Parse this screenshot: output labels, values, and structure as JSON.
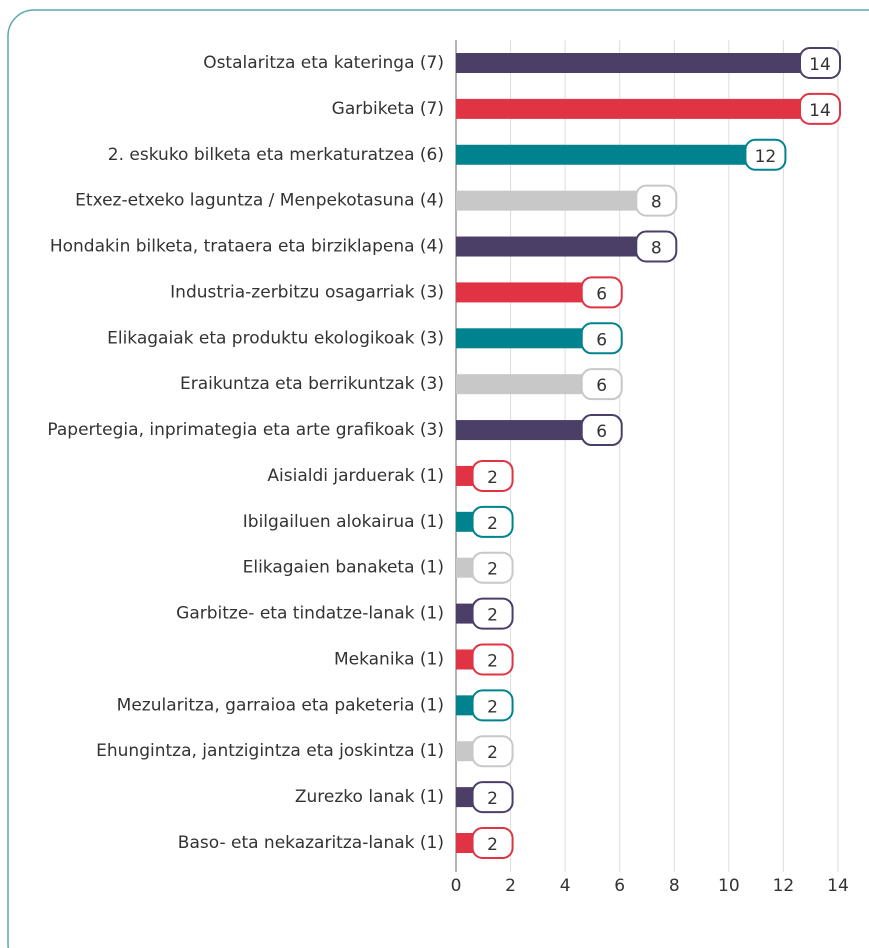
{
  "chart_data": {
    "type": "barh",
    "categories": [
      "Ostalaritza eta kateringa (7)",
      "Garbiketa (7)",
      "2. eskuko bilketa eta merkaturatzea (6)",
      "Etxez-etxeko laguntza / Menpekotasuna (4)",
      "Hondakin bilketa, trataera eta birziklapena (4)",
      "Industria-zerbitzu osagarriak (3)",
      "Elikagaiak eta produktu ekologikoak (3)",
      "Eraikuntza eta berrikuntzak (3)",
      "Papertegia, inprimategia eta arte grafikoak (3)",
      "Aisialdi jarduerak (1)",
      "Ibilgailuen alokairua (1)",
      "Elikagaien banaketa (1)",
      "Garbitze- eta tindatze-lanak (1)",
      "Mekanika (1)",
      "Mezularitza, garraioa eta paketeria (1)",
      "Ehungintza, jantzigintza eta joskintza (1)",
      "Zurezko lanak (1)",
      "Baso- eta nekazaritza-lanak (1)"
    ],
    "values": [
      14,
      14,
      12,
      8,
      8,
      6,
      6,
      6,
      6,
      2,
      2,
      2,
      2,
      2,
      2,
      2,
      2,
      2
    ],
    "colors": [
      "#4b3f68",
      "#e03344",
      "#00838f",
      "#c8c8c8",
      "#4b3f68",
      "#e03344",
      "#00838f",
      "#c8c8c8",
      "#4b3f68",
      "#e03344",
      "#00838f",
      "#c8c8c8",
      "#4b3f68",
      "#e03344",
      "#00838f",
      "#c8c8c8",
      "#4b3f68",
      "#e03344"
    ],
    "xlim": [
      0,
      14
    ],
    "xticks": [
      0,
      2,
      4,
      6,
      8,
      10,
      12,
      14
    ],
    "grid": true
  }
}
